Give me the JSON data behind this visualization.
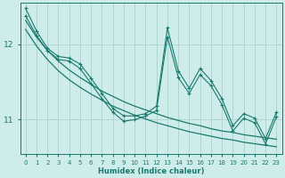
{
  "xlabel": "Humidex (Indice chaleur)",
  "bg_color": "#cdecea",
  "line_color": "#1a7a6e",
  "grid_color": "#b0d4d0",
  "x": [
    0,
    1,
    2,
    3,
    4,
    5,
    6,
    7,
    8,
    9,
    10,
    11,
    12,
    13,
    14,
    15,
    16,
    17,
    18,
    19,
    20,
    21,
    22,
    23
  ],
  "series1": [
    12.48,
    12.18,
    11.95,
    11.84,
    11.82,
    11.74,
    11.55,
    11.35,
    11.15,
    11.05,
    11.05,
    11.08,
    11.18,
    12.22,
    11.65,
    11.42,
    11.68,
    11.52,
    11.28,
    10.92,
    11.08,
    11.02,
    10.75,
    11.1
  ],
  "series2": [
    12.38,
    12.12,
    11.92,
    11.8,
    11.78,
    11.68,
    11.48,
    11.28,
    11.1,
    10.98,
    11.0,
    11.05,
    11.12,
    12.1,
    11.56,
    11.35,
    11.6,
    11.45,
    11.2,
    10.85,
    11.02,
    10.96,
    10.68,
    11.04
  ],
  "trend1": [
    12.32,
    12.1,
    11.92,
    11.78,
    11.66,
    11.56,
    11.47,
    11.38,
    11.31,
    11.24,
    11.18,
    11.13,
    11.08,
    11.03,
    10.99,
    10.95,
    10.92,
    10.88,
    10.85,
    10.83,
    10.8,
    10.78,
    10.76,
    10.74
  ],
  "trend2": [
    12.2,
    11.98,
    11.8,
    11.65,
    11.53,
    11.43,
    11.34,
    11.26,
    11.18,
    11.12,
    11.06,
    11.01,
    10.96,
    10.92,
    10.88,
    10.84,
    10.81,
    10.78,
    10.75,
    10.73,
    10.7,
    10.68,
    10.66,
    10.64
  ],
  "ylim": [
    10.55,
    12.55
  ],
  "yticks": [
    11,
    12
  ],
  "xlim": [
    -0.5,
    23.5
  ],
  "xtick_fontsize": 5.0,
  "ytick_fontsize": 6.5,
  "xlabel_fontsize": 6.0
}
